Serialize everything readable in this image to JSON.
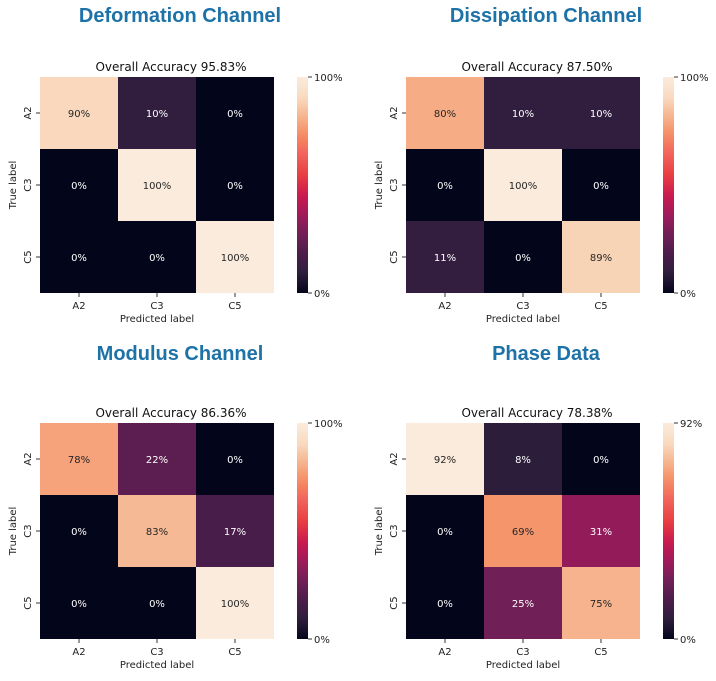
{
  "chart_data": [
    {
      "type": "heatmap",
      "panel_title": "Deformation Channel",
      "title": "Overall Accuracy 95.83%",
      "xlabel": "Predicted label",
      "ylabel": "True label",
      "x_categories": [
        "A2",
        "C3",
        "C5"
      ],
      "y_categories": [
        "A2",
        "C3",
        "C5"
      ],
      "values": [
        [
          90,
          10,
          0
        ],
        [
          0,
          100,
          0
        ],
        [
          0,
          0,
          100
        ]
      ],
      "cell_labels": [
        [
          "90%",
          "10%",
          "0%"
        ],
        [
          "0%",
          "100%",
          "0%"
        ],
        [
          "0%",
          "0%",
          "100%"
        ]
      ],
      "color_range": [
        0,
        100
      ],
      "colorbar_labels": [
        "100%",
        "0%"
      ]
    },
    {
      "type": "heatmap",
      "panel_title": "Dissipation Channel",
      "title": "Overall Accuracy 87.50%",
      "xlabel": "Predicted label",
      "ylabel": "True label",
      "x_categories": [
        "A2",
        "C3",
        "C5"
      ],
      "y_categories": [
        "A2",
        "C3",
        "C5"
      ],
      "values": [
        [
          80,
          10,
          10
        ],
        [
          0,
          100,
          0
        ],
        [
          11,
          0,
          89
        ]
      ],
      "cell_labels": [
        [
          "80%",
          "10%",
          "10%"
        ],
        [
          "0%",
          "100%",
          "0%"
        ],
        [
          "11%",
          "0%",
          "89%"
        ]
      ],
      "color_range": [
        0,
        100
      ],
      "colorbar_labels": [
        "100%",
        "0%"
      ]
    },
    {
      "type": "heatmap",
      "panel_title": "Modulus Channel",
      "title": "Overall Accuracy 86.36%",
      "xlabel": "Predicted label",
      "ylabel": "True label",
      "x_categories": [
        "A2",
        "C3",
        "C5"
      ],
      "y_categories": [
        "A2",
        "C3",
        "C5"
      ],
      "values": [
        [
          78,
          22,
          0
        ],
        [
          0,
          83,
          17
        ],
        [
          0,
          0,
          100
        ]
      ],
      "cell_labels": [
        [
          "78%",
          "22%",
          "0%"
        ],
        [
          "0%",
          "83%",
          "17%"
        ],
        [
          "0%",
          "0%",
          "100%"
        ]
      ],
      "color_range": [
        0,
        100
      ],
      "colorbar_labels": [
        "100%",
        "0%"
      ]
    },
    {
      "type": "heatmap",
      "panel_title": "Phase Data",
      "title": "Overall Accuracy 78.38%",
      "xlabel": "Predicted label",
      "ylabel": "True label",
      "x_categories": [
        "A2",
        "C3",
        "C5"
      ],
      "y_categories": [
        "A2",
        "C3",
        "C5"
      ],
      "values": [
        [
          92,
          8,
          0
        ],
        [
          0,
          69,
          31
        ],
        [
          0,
          25,
          75
        ]
      ],
      "cell_labels": [
        [
          "92%",
          "8%",
          "0%"
        ],
        [
          "0%",
          "69%",
          "31%"
        ],
        [
          "0%",
          "25%",
          "75%"
        ]
      ],
      "color_range": [
        0,
        92
      ],
      "colorbar_labels": [
        "92%",
        "0%"
      ]
    }
  ],
  "colormap_stops": [
    "#03051a",
    "#2e1e3c",
    "#4c1d4b",
    "#711f57",
    "#a11a5b",
    "#cb1b4f",
    "#e83f3f",
    "#f1605d",
    "#f58a60",
    "#f6b48e",
    "#f9dcc2",
    "#faebdd"
  ]
}
